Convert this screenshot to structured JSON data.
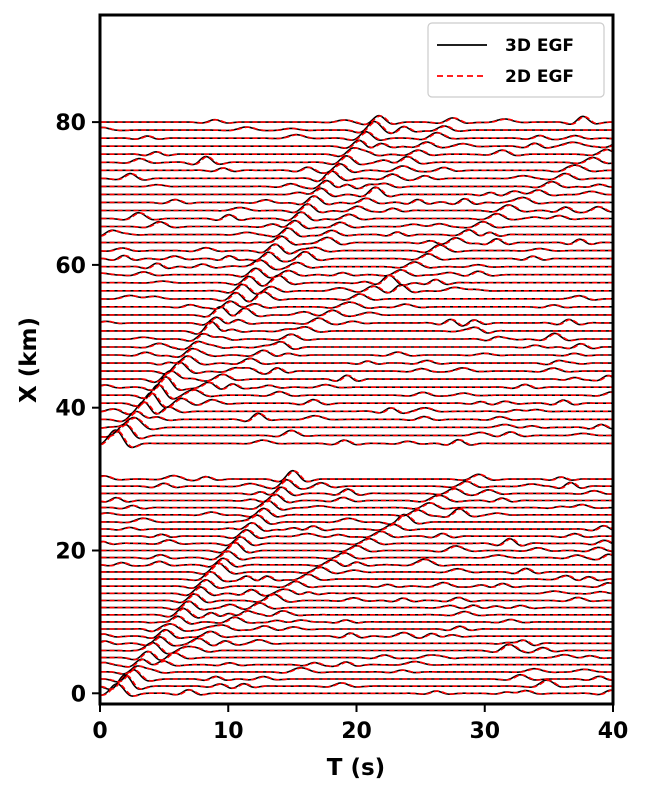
{
  "chart_data": {
    "type": "line",
    "xlabel": "T (s)",
    "ylabel": "X (km)",
    "xlim": [
      0,
      40
    ],
    "ylim": [
      -1.5,
      95
    ],
    "xticks": [
      0,
      10,
      20,
      30,
      40
    ],
    "yticks": [
      0,
      20,
      40,
      60,
      80
    ],
    "xtick_labels": [
      "0",
      "10",
      "20",
      "30",
      "40"
    ],
    "ytick_labels": [
      "0",
      "20",
      "40",
      "60",
      "80"
    ],
    "grid": false,
    "legend": {
      "placement": "top-right",
      "entries": [
        {
          "label": "3D EGF",
          "color": "#000000",
          "style": "solid"
        },
        {
          "label": "2D EGF",
          "color": "#ff0000",
          "style": "dashed"
        }
      ]
    },
    "series": [
      {
        "name": "3D EGF",
        "color": "#000000",
        "style": "solid"
      },
      {
        "name": "2D EGF",
        "color": "#ff0000",
        "style": "dashed"
      }
    ],
    "trace_groups": [
      {
        "offset_start": 0,
        "offset_end": 30,
        "count": 31
      },
      {
        "offset_start": 35,
        "offset_end": 80,
        "count": 41
      }
    ]
  }
}
